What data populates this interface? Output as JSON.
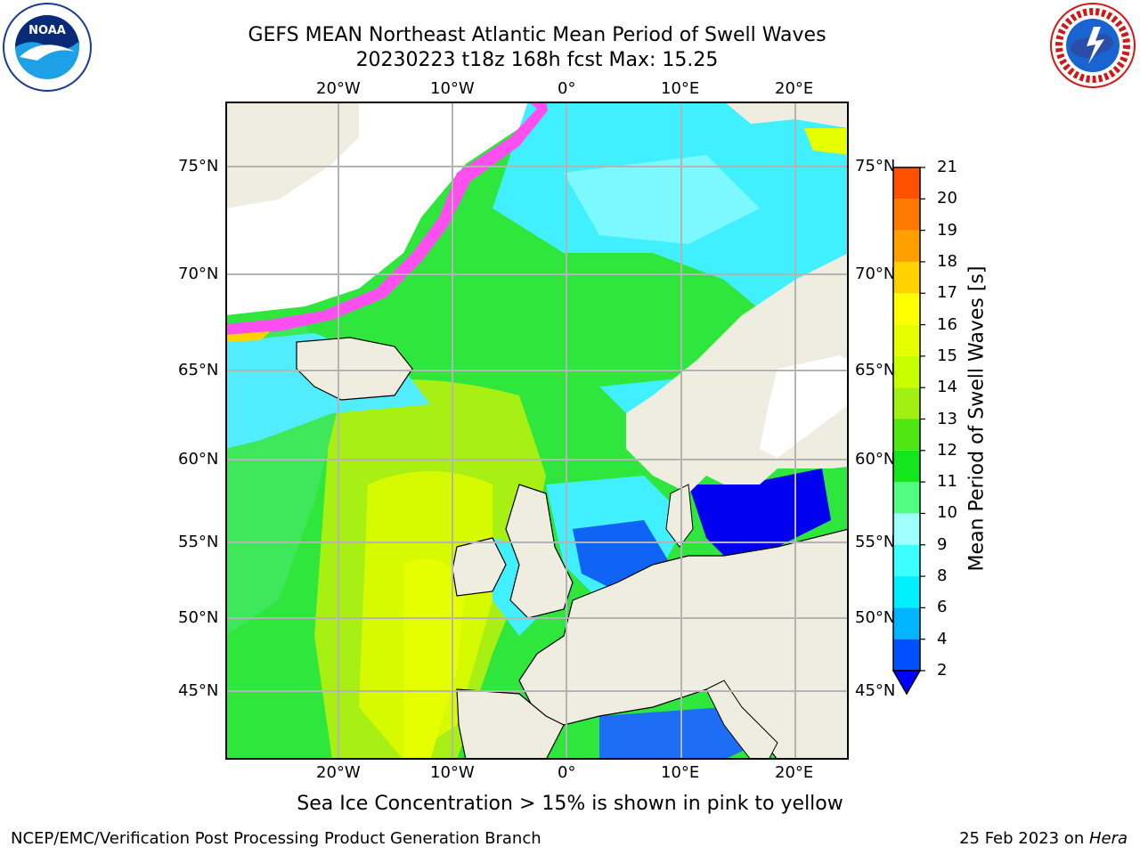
{
  "title": {
    "line1": "GEFS MEAN Northeast Atlantic Mean Period of Swell Waves",
    "line2": "20230223 t18z 168h fcst   Max: 15.25"
  },
  "logos": {
    "left": {
      "icon": "noaa-logo",
      "text": "NOAA"
    },
    "right": {
      "icon": "nws-logo",
      "text": "NATIONAL WEATHER SERVICE"
    }
  },
  "map": {
    "lon_ticks": [
      "20°W",
      "10°W",
      "0°",
      "10°E",
      "20°E"
    ],
    "lat_ticks": [
      "75°N",
      "70°N",
      "65°N",
      "60°N",
      "55°N",
      "50°N",
      "45°N"
    ],
    "colors": {
      "land": "#efede0",
      "ice_white": "#ffffff",
      "grid": "#b4b4b4"
    }
  },
  "colorbar": {
    "title": "Mean Period of Swell Waves [s]",
    "levels": [
      "2",
      "4",
      "6",
      "8",
      "9",
      "10",
      "11",
      "12",
      "13",
      "14",
      "15",
      "16",
      "17",
      "18",
      "19",
      "20",
      "21"
    ],
    "colors": [
      "#0050ff",
      "#00b4ff",
      "#00f0ff",
      "#3cffff",
      "#a0ffff",
      "#50ff82",
      "#14e61e",
      "#50e614",
      "#a0f014",
      "#c8ff00",
      "#e6ff00",
      "#ffff00",
      "#ffd200",
      "#ffa000",
      "#ff7800",
      "#ff5000",
      "#ff2800",
      "#ff0000"
    ],
    "extend_color": "#0000ff"
  },
  "notes": {
    "ice": "Sea Ice Concentration > 15% is shown in pink to yellow"
  },
  "footer": {
    "left": "NCEP/EMC/Verification Post Processing Product Generation Branch",
    "date": "25 Feb 2023 on ",
    "host": "Hera"
  }
}
